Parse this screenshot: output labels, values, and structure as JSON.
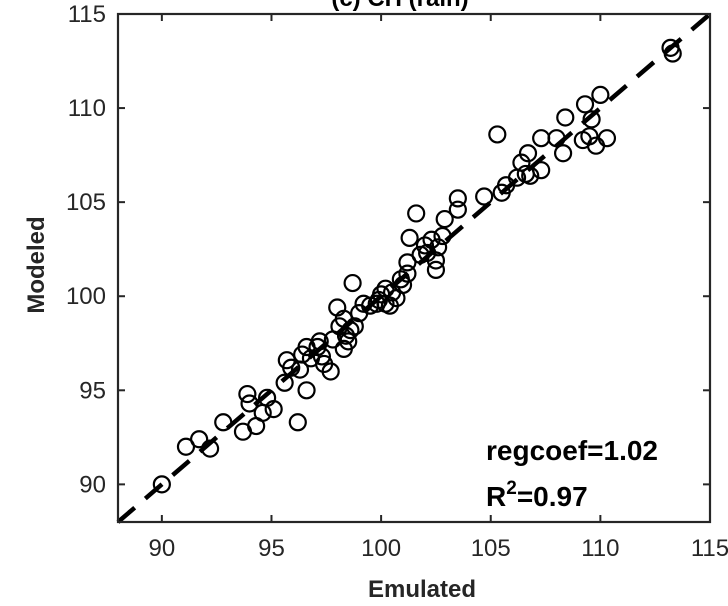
{
  "chart_data": {
    "type": "scatter",
    "title": "(c) CH (rain)",
    "xlabel": "Emulated",
    "ylabel": "Modeled",
    "xlim": [
      88,
      115
    ],
    "ylim": [
      88,
      115
    ],
    "xticks": [
      90,
      95,
      100,
      105,
      110,
      115
    ],
    "yticks": [
      90,
      95,
      100,
      105,
      110,
      115
    ],
    "grid": false,
    "reference_line": {
      "style": "dashed",
      "slope": 1,
      "intercept": 0,
      "color": "#000000"
    },
    "marker": {
      "shape": "open-circle",
      "color": "#000000"
    },
    "annotations": {
      "regcoef": "regcoef=1.02",
      "r2_prefix": "R",
      "r2_sup": "2",
      "r2_value": "=0.97"
    },
    "series": [
      {
        "points": [
          [
            90.0,
            90.0
          ],
          [
            91.1,
            92.0
          ],
          [
            91.7,
            92.4
          ],
          [
            92.2,
            91.9
          ],
          [
            92.8,
            93.3
          ],
          [
            93.7,
            92.8
          ],
          [
            93.9,
            94.8
          ],
          [
            94.0,
            94.3
          ],
          [
            94.3,
            93.1
          ],
          [
            94.6,
            93.8
          ],
          [
            94.8,
            94.6
          ],
          [
            95.1,
            94.0
          ],
          [
            95.6,
            95.4
          ],
          [
            95.7,
            96.6
          ],
          [
            95.9,
            96.2
          ],
          [
            96.2,
            93.3
          ],
          [
            96.3,
            96.1
          ],
          [
            96.4,
            96.9
          ],
          [
            96.6,
            97.3
          ],
          [
            96.6,
            95.0
          ],
          [
            96.8,
            96.7
          ],
          [
            97.1,
            97.3
          ],
          [
            97.2,
            97.6
          ],
          [
            97.3,
            96.8
          ],
          [
            97.4,
            96.4
          ],
          [
            97.7,
            96.0
          ],
          [
            97.8,
            97.7
          ],
          [
            98.0,
            99.4
          ],
          [
            98.1,
            98.4
          ],
          [
            98.3,
            97.2
          ],
          [
            98.3,
            98.8
          ],
          [
            98.4,
            97.9
          ],
          [
            98.5,
            97.6
          ],
          [
            98.6,
            98.2
          ],
          [
            98.7,
            100.7
          ],
          [
            98.8,
            98.4
          ],
          [
            99.0,
            99.1
          ],
          [
            99.2,
            99.6
          ],
          [
            99.5,
            99.5
          ],
          [
            99.8,
            99.6
          ],
          [
            99.9,
            99.8
          ],
          [
            100.0,
            100.1
          ],
          [
            100.2,
            99.6
          ],
          [
            100.2,
            100.4
          ],
          [
            100.4,
            99.5
          ],
          [
            100.5,
            100.2
          ],
          [
            100.7,
            99.9
          ],
          [
            100.9,
            100.9
          ],
          [
            101.0,
            100.6
          ],
          [
            101.2,
            101.2
          ],
          [
            101.2,
            101.8
          ],
          [
            101.3,
            103.1
          ],
          [
            101.6,
            104.4
          ],
          [
            101.8,
            102.2
          ],
          [
            102.0,
            102.7
          ],
          [
            102.1,
            102.3
          ],
          [
            102.3,
            103.0
          ],
          [
            102.5,
            101.4
          ],
          [
            102.5,
            101.9
          ],
          [
            102.6,
            102.6
          ],
          [
            102.8,
            103.2
          ],
          [
            102.9,
            104.1
          ],
          [
            103.5,
            104.6
          ],
          [
            103.5,
            105.2
          ],
          [
            104.7,
            105.3
          ],
          [
            105.3,
            108.6
          ],
          [
            105.5,
            105.5
          ],
          [
            105.7,
            105.9
          ],
          [
            106.2,
            106.3
          ],
          [
            106.4,
            107.1
          ],
          [
            106.6,
            106.5
          ],
          [
            106.7,
            107.6
          ],
          [
            106.8,
            106.4
          ],
          [
            107.3,
            106.7
          ],
          [
            107.3,
            108.4
          ],
          [
            108.0,
            108.4
          ],
          [
            108.3,
            107.6
          ],
          [
            108.4,
            109.5
          ],
          [
            109.2,
            108.3
          ],
          [
            109.3,
            110.2
          ],
          [
            109.5,
            108.5
          ],
          [
            109.6,
            109.4
          ],
          [
            109.8,
            108.0
          ],
          [
            110.0,
            110.7
          ],
          [
            110.3,
            108.4
          ],
          [
            113.2,
            113.2
          ],
          [
            113.3,
            112.9
          ]
        ]
      }
    ]
  }
}
